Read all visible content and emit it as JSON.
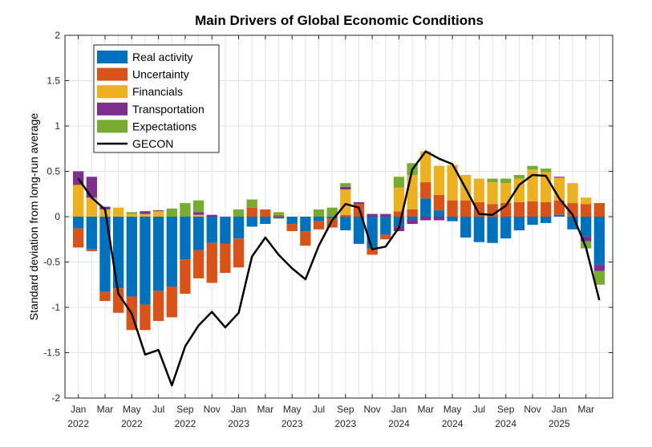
{
  "chart_data": {
    "type": "bar",
    "subtype": "stacked bar with line overlay",
    "title": "Main Drivers of Global Economic Conditions",
    "ylabel": "Standard deviation from long-run average",
    "xlabel": "",
    "ylim": [
      -2,
      2
    ],
    "yticks": [
      -2,
      -1.5,
      -1,
      -0.5,
      0,
      0.5,
      1,
      1.5,
      2
    ],
    "ytick_labels": [
      "-2",
      "-1.5",
      "-1",
      "-0.5",
      "0",
      "0.5",
      "1",
      "1.5",
      "2"
    ],
    "grid": true,
    "legend_position": "top-left",
    "categories": [
      "Jan 2022",
      "Feb 2022",
      "Mar 2022",
      "Apr 2022",
      "May 2022",
      "Jun 2022",
      "Jul 2022",
      "Aug 2022",
      "Sep 2022",
      "Oct 2022",
      "Nov 2022",
      "Dec 2022",
      "Jan 2023",
      "Feb 2023",
      "Mar 2023",
      "Apr 2023",
      "May 2023",
      "Jun 2023",
      "Jul 2023",
      "Aug 2023",
      "Sep 2023",
      "Oct 2023",
      "Nov 2023",
      "Dec 2023",
      "Jan 2024",
      "Feb 2024",
      "Mar 2024",
      "Apr 2024",
      "May 2024",
      "Jun 2024",
      "Jul 2024",
      "Aug 2024",
      "Sep 2024",
      "Oct 2024",
      "Nov 2024",
      "Dec 2024",
      "Jan 2025",
      "Feb 2025",
      "Mar 2025",
      "Apr 2025"
    ],
    "x_tick_labels": [
      {
        "index": 0,
        "month": "Jan",
        "year": "2022"
      },
      {
        "index": 2,
        "month": "Mar",
        "year": ""
      },
      {
        "index": 4,
        "month": "May",
        "year": "2022"
      },
      {
        "index": 6,
        "month": "Jul",
        "year": ""
      },
      {
        "index": 8,
        "month": "Sep",
        "year": "2022"
      },
      {
        "index": 10,
        "month": "Nov",
        "year": ""
      },
      {
        "index": 12,
        "month": "Jan",
        "year": "2023"
      },
      {
        "index": 14,
        "month": "Mar",
        "year": ""
      },
      {
        "index": 16,
        "month": "May",
        "year": "2023"
      },
      {
        "index": 18,
        "month": "Jul",
        "year": ""
      },
      {
        "index": 20,
        "month": "Sep",
        "year": "2023"
      },
      {
        "index": 22,
        "month": "Nov",
        "year": ""
      },
      {
        "index": 24,
        "month": "Jan",
        "year": "2024"
      },
      {
        "index": 26,
        "month": "Mar",
        "year": ""
      },
      {
        "index": 28,
        "month": "May",
        "year": "2024"
      },
      {
        "index": 30,
        "month": "Jul",
        "year": ""
      },
      {
        "index": 32,
        "month": "Sep",
        "year": "2024"
      },
      {
        "index": 34,
        "month": "Nov",
        "year": ""
      },
      {
        "index": 36,
        "month": "Jan",
        "year": "2025"
      },
      {
        "index": 38,
        "month": "Mar",
        "year": ""
      }
    ],
    "series": [
      {
        "name": "Real activity",
        "kind": "bar",
        "color": "#0072BD",
        "values": [
          -0.13,
          -0.36,
          -0.83,
          -0.79,
          -0.88,
          -0.97,
          -0.82,
          -0.77,
          -0.47,
          -0.37,
          -0.29,
          -0.3,
          -0.24,
          -0.11,
          -0.08,
          -0.02,
          -0.08,
          -0.16,
          -0.05,
          -0.02,
          -0.15,
          -0.3,
          -0.35,
          -0.2,
          -0.11,
          -0.04,
          0.2,
          0.07,
          -0.05,
          -0.23,
          -0.28,
          -0.29,
          -0.24,
          -0.15,
          -0.09,
          -0.07,
          0.02,
          -0.14,
          -0.22,
          -0.53
        ]
      },
      {
        "name": "Uncertainty",
        "kind": "bar",
        "color": "#D95319",
        "values": [
          -0.21,
          -0.02,
          -0.1,
          -0.27,
          -0.37,
          -0.28,
          -0.33,
          -0.34,
          -0.38,
          -0.31,
          -0.44,
          -0.32,
          -0.32,
          0.1,
          0.08,
          0.02,
          -0.08,
          -0.16,
          -0.09,
          -0.1,
          0.02,
          0.14,
          -0.07,
          -0.05,
          0.06,
          0.08,
          0.18,
          0.17,
          0.18,
          0.18,
          0.16,
          0.14,
          0.15,
          0.16,
          0.17,
          0.16,
          0.16,
          0.15,
          0.14,
          0.15
        ]
      },
      {
        "name": "Financials",
        "kind": "bar",
        "color": "#EDB120",
        "values": [
          0.35,
          0.21,
          0.08,
          0.1,
          0.03,
          0.03,
          0.06,
          0.0,
          0.0,
          0.02,
          0.0,
          0.0,
          0.0,
          0.0,
          0.0,
          0.0,
          0.0,
          0.0,
          0.0,
          0.0,
          0.28,
          0.0,
          0.0,
          0.0,
          0.26,
          0.38,
          0.34,
          0.32,
          0.39,
          0.28,
          0.26,
          0.24,
          0.22,
          0.26,
          0.35,
          0.33,
          0.25,
          0.22,
          0.07,
          0.0
        ]
      },
      {
        "name": "Transportation",
        "kind": "bar",
        "color": "#7E2F8E",
        "values": [
          0.15,
          0.23,
          0.03,
          0.0,
          0.0,
          0.03,
          0.01,
          0.0,
          0.0,
          0.03,
          0.02,
          0.0,
          0.0,
          0.0,
          0.0,
          0.0,
          0.0,
          0.0,
          0.0,
          0.0,
          0.03,
          0.02,
          0.03,
          0.03,
          -0.05,
          -0.04,
          -0.04,
          -0.04,
          0.0,
          0.0,
          0.0,
          0.0,
          0.0,
          0.0,
          0.0,
          0.0,
          0.01,
          0.0,
          -0.05,
          -0.07
        ]
      },
      {
        "name": "Expectations",
        "kind": "bar",
        "color": "#77AC30",
        "values": [
          0.0,
          0.0,
          0.0,
          0.0,
          0.02,
          0.0,
          0.0,
          0.09,
          0.15,
          0.13,
          0.0,
          0.0,
          0.08,
          0.09,
          0.0,
          0.03,
          0.0,
          0.0,
          0.08,
          0.1,
          0.04,
          0.0,
          0.0,
          0.0,
          0.12,
          0.13,
          0.0,
          0.0,
          0.0,
          0.0,
          0.0,
          0.04,
          0.05,
          0.04,
          0.04,
          0.04,
          0.0,
          0.0,
          -0.08,
          -0.15
        ]
      },
      {
        "name": "GECON",
        "kind": "line",
        "color": "#000000",
        "values": [
          0.42,
          0.21,
          0.08,
          -0.85,
          -1.07,
          -1.52,
          -1.47,
          -1.86,
          -1.43,
          -1.2,
          -1.05,
          -1.22,
          -1.06,
          -0.44,
          -0.23,
          -0.42,
          -0.57,
          -0.69,
          -0.32,
          -0.04,
          0.14,
          0.1,
          -0.36,
          -0.33,
          -0.12,
          0.52,
          0.72,
          0.64,
          0.58,
          0.31,
          0.03,
          0.02,
          0.12,
          0.35,
          0.46,
          0.45,
          0.2,
          0.02,
          -0.34,
          -0.92
        ]
      }
    ]
  }
}
